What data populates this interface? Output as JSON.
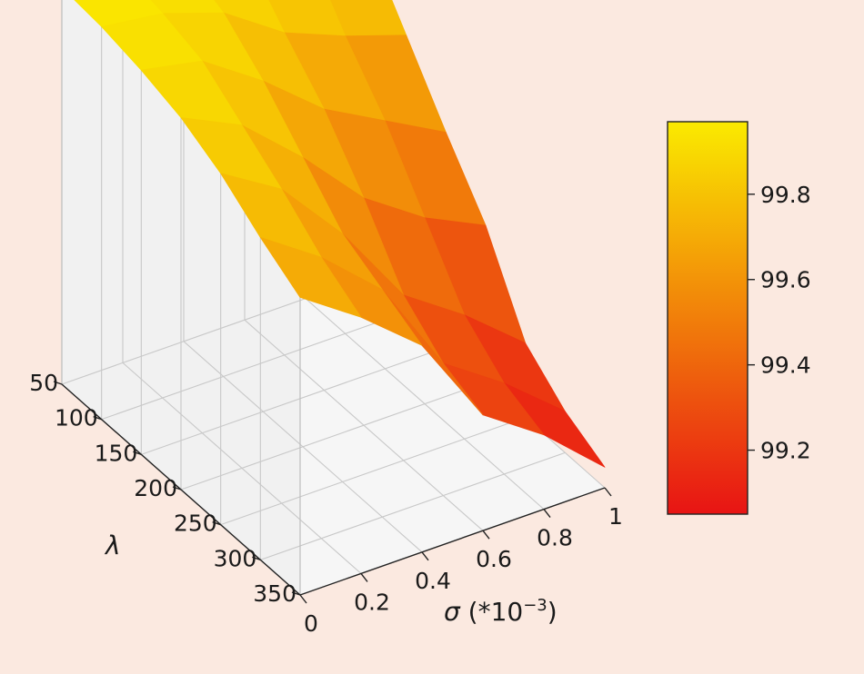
{
  "chart_data": {
    "type": "surface3d",
    "title": "",
    "xlabel": "σ (*10⁻³)",
    "ylabel": "λ",
    "x_axis": {
      "symbol": "σ",
      "unit_text": " (*10",
      "unit_exp": "−3",
      "unit_close": ")",
      "ticks": [
        0,
        0.2,
        0.4,
        0.6,
        0.8,
        1
      ],
      "tick_labels": [
        "0",
        "0.2",
        "0.4",
        "0.6",
        "0.8",
        "1"
      ],
      "range": [
        0,
        1
      ]
    },
    "y_axis": {
      "symbol": "λ",
      "ticks": [
        50,
        100,
        150,
        200,
        250,
        300,
        350
      ],
      "tick_labels": [
        "50",
        "100",
        "150",
        "200",
        "250",
        "300",
        "350"
      ],
      "range": [
        50,
        350
      ]
    },
    "colorbar": {
      "colormap": "autumn_r",
      "range": [
        99.05,
        99.97
      ],
      "ticks": [
        99.2,
        99.4,
        99.6,
        99.8
      ],
      "tick_labels": [
        "99.2",
        "99.4",
        "99.6",
        "99.8"
      ]
    },
    "sigma": [
      0,
      0.2,
      0.4,
      0.6,
      0.8,
      1
    ],
    "lambda": [
      50,
      100,
      150,
      200,
      250,
      300,
      350
    ],
    "z": [
      [
        99.96,
        99.95,
        99.93,
        99.9,
        99.85,
        99.78,
        99.72
      ],
      [
        99.95,
        99.93,
        99.9,
        99.83,
        99.76,
        99.68,
        99.62
      ],
      [
        99.92,
        99.88,
        99.8,
        99.7,
        99.6,
        99.55,
        99.5
      ],
      [
        99.89,
        99.78,
        99.68,
        99.55,
        99.4,
        99.32,
        99.28
      ],
      [
        99.86,
        99.72,
        99.6,
        99.45,
        99.3,
        99.22,
        99.18
      ],
      [
        99.82,
        99.67,
        99.52,
        99.38,
        99.18,
        99.1,
        99.05
      ]
    ],
    "grid": true,
    "legend": "colorbar-right"
  }
}
